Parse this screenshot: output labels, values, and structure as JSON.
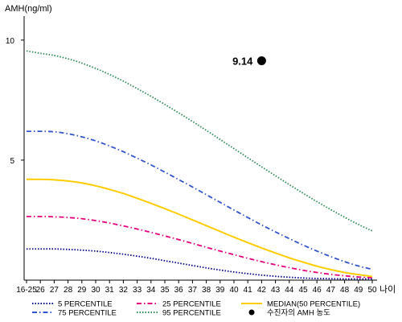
{
  "chart_data": {
    "type": "line",
    "ylabel": "AMH(ng/ml)",
    "xlabel": "나이",
    "x": [
      "16-25",
      "26",
      "27",
      "28",
      "29",
      "30",
      "31",
      "32",
      "33",
      "34",
      "35",
      "36",
      "37",
      "38",
      "39",
      "40",
      "41",
      "42",
      "43",
      "44",
      "45",
      "46",
      "47",
      "48",
      "49",
      "50"
    ],
    "ylim": [
      0,
      11
    ],
    "yticks": [
      5,
      10
    ],
    "series": [
      {
        "name": "5 PERCENTILE",
        "color": "#00008b",
        "dash": "dot",
        "values": [
          1.3,
          1.3,
          1.3,
          1.28,
          1.25,
          1.21,
          1.15,
          1.08,
          1.0,
          0.91,
          0.81,
          0.71,
          0.61,
          0.51,
          0.42,
          0.34,
          0.27,
          0.21,
          0.16,
          0.12,
          0.09,
          0.07,
          0.06,
          0.05,
          0.05,
          0.05
        ]
      },
      {
        "name": "25 PERCENTILE",
        "color": "#e6007e",
        "dash": "dashdot",
        "values": [
          2.65,
          2.65,
          2.64,
          2.61,
          2.56,
          2.48,
          2.38,
          2.26,
          2.13,
          1.99,
          1.84,
          1.69,
          1.53,
          1.37,
          1.21,
          1.06,
          0.91,
          0.77,
          0.64,
          0.52,
          0.41,
          0.32,
          0.24,
          0.18,
          0.13,
          0.1
        ]
      },
      {
        "name": "MEDIAN(50 PERCENTILE)",
        "color": "#ffcc00",
        "dash": "solid",
        "values": [
          4.2,
          4.2,
          4.18,
          4.13,
          4.05,
          3.93,
          3.78,
          3.61,
          3.41,
          3.2,
          2.98,
          2.75,
          2.51,
          2.27,
          2.03,
          1.79,
          1.56,
          1.34,
          1.13,
          0.93,
          0.75,
          0.58,
          0.44,
          0.32,
          0.23,
          0.15
        ]
      },
      {
        "name": "75 PERCENTILE",
        "color": "#3355cc",
        "dash": "dashdot",
        "values": [
          6.2,
          6.2,
          6.18,
          6.1,
          5.97,
          5.8,
          5.59,
          5.35,
          5.08,
          4.8,
          4.5,
          4.19,
          3.88,
          3.56,
          3.24,
          2.92,
          2.61,
          2.3,
          2.01,
          1.73,
          1.46,
          1.21,
          0.98,
          0.77,
          0.59,
          0.45
        ]
      },
      {
        "name": "95 PERCENTILE",
        "color": "#2e8b57",
        "dash": "dot",
        "values": [
          9.55,
          9.45,
          9.36,
          9.22,
          9.04,
          8.82,
          8.57,
          8.29,
          7.98,
          7.66,
          7.32,
          6.97,
          6.61,
          6.24,
          5.86,
          5.48,
          5.1,
          4.72,
          4.35,
          3.98,
          3.62,
          3.27,
          2.94,
          2.62,
          2.32,
          2.05
        ]
      }
    ],
    "point": {
      "x": "42",
      "y": 9.14,
      "label": "9.14"
    },
    "legend_extra": "수진자의 AMH 농도",
    "legend_position": "bottom",
    "grid": false
  }
}
